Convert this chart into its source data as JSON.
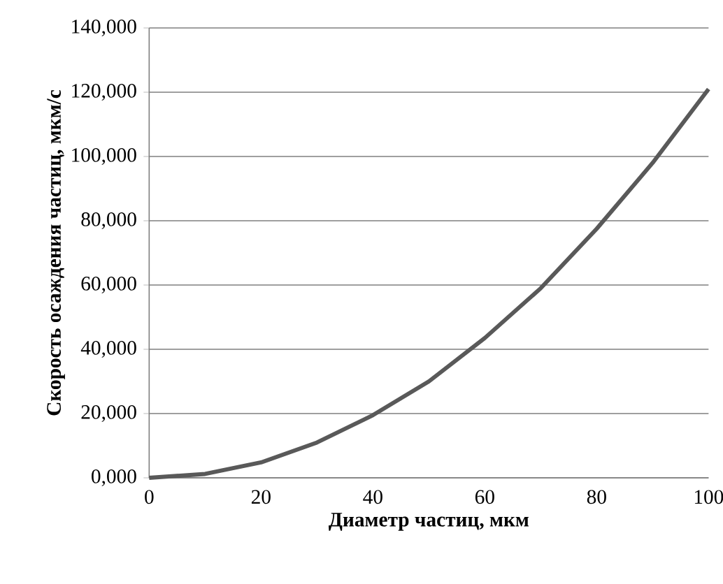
{
  "chart_data": {
    "type": "line",
    "xlabel": "Диаметр частиц, мкм",
    "ylabel": "Скорость осаждения частиц, мкм/с",
    "x": [
      0,
      10,
      20,
      30,
      40,
      50,
      60,
      70,
      80,
      90,
      100
    ],
    "series": [
      {
        "color": "#595959",
        "values": [
          0,
          1200,
          4800,
          11000,
          19500,
          30000,
          43500,
          59000,
          77500,
          98000,
          121000
        ]
      }
    ],
    "xlim": [
      0,
      100
    ],
    "xticks": [
      0,
      20,
      40,
      60,
      80,
      100
    ],
    "ylim": [
      0,
      140000
    ],
    "yticks": [
      {
        "value": 0,
        "label": "0,000"
      },
      {
        "value": 20000,
        "label": "20,000"
      },
      {
        "value": 40000,
        "label": "40,000"
      },
      {
        "value": 60000,
        "label": "60,000"
      },
      {
        "value": 80000,
        "label": "80,000"
      },
      {
        "value": 100000,
        "label": "100,000"
      },
      {
        "value": 120000,
        "label": "120,000"
      },
      {
        "value": 140000,
        "label": "140,000"
      }
    ],
    "grid": "y",
    "marker": "none",
    "line_style": "solid"
  }
}
